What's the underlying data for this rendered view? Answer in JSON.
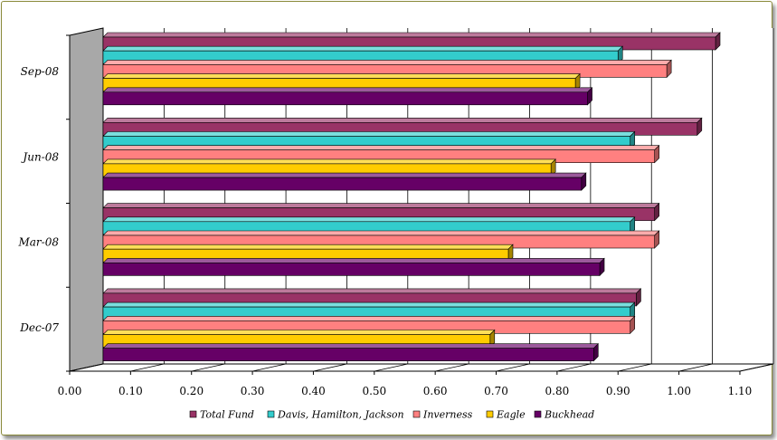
{
  "chart_data": {
    "type": "bar",
    "orientation": "horizontal",
    "style": "3d-clustered",
    "categories": [
      "Dec-07",
      "Mar-08",
      "Jun-08",
      "Sep-08"
    ],
    "series": [
      {
        "name": "Total Fund",
        "color": "#993366",
        "values": [
          0.93,
          0.96,
          1.03,
          1.06
        ]
      },
      {
        "name": "Davis, Hamilton, Jackson",
        "color": "#33CCCC",
        "values": [
          0.92,
          0.92,
          0.92,
          0.9
        ]
      },
      {
        "name": "Inverness",
        "color": "#FF8080",
        "values": [
          0.92,
          0.96,
          0.96,
          0.98
        ]
      },
      {
        "name": "Eagle",
        "color": "#FFCC00",
        "values": [
          0.69,
          0.72,
          0.79,
          0.83
        ]
      },
      {
        "name": "Buckhead",
        "color": "#660066",
        "values": [
          0.86,
          0.87,
          0.84,
          0.85
        ]
      }
    ],
    "x_ticks": [
      "0.00",
      "0.10",
      "0.20",
      "0.30",
      "0.40",
      "0.50",
      "0.60",
      "0.70",
      "0.80",
      "0.90",
      "1.00",
      "1.10"
    ],
    "xlim": [
      0,
      1.1
    ],
    "xlabel": "",
    "ylabel": "",
    "title": "",
    "grid": true,
    "legend_position": "bottom"
  }
}
